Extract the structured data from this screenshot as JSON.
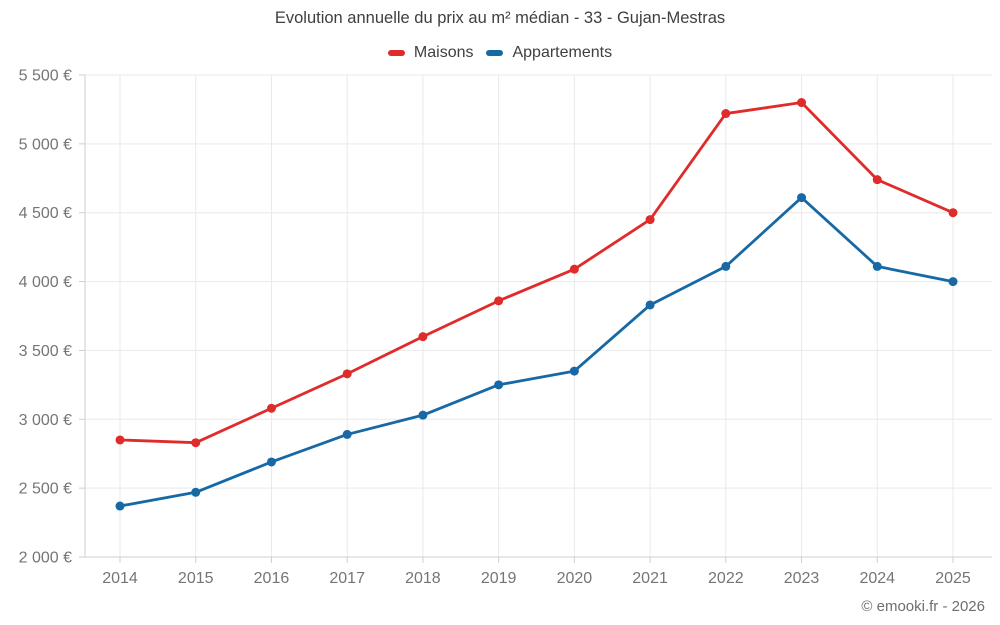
{
  "title": "Evolution annuelle du prix au m² médian - 33 - Gujan-Mestras",
  "copyright": "© emooki.fr - 2026",
  "legend": {
    "items": [
      {
        "label": "Maisons",
        "color": "#e02b2b"
      },
      {
        "label": "Appartements",
        "color": "#1769a6"
      }
    ]
  },
  "chart_data": {
    "type": "line",
    "title": "Evolution annuelle du prix au m² médian - 33 - Gujan-Mestras",
    "x": [
      2014,
      2015,
      2016,
      2017,
      2018,
      2019,
      2020,
      2021,
      2022,
      2023,
      2024,
      2025
    ],
    "series": [
      {
        "name": "Maisons",
        "color": "#e02b2b",
        "values": [
          2850,
          2830,
          3080,
          3330,
          3600,
          3860,
          4090,
          4450,
          5220,
          5300,
          4740,
          4500
        ]
      },
      {
        "name": "Appartements",
        "color": "#1769a6",
        "values": [
          2370,
          2470,
          2690,
          2890,
          3030,
          3250,
          3350,
          3830,
          4110,
          4610,
          4110,
          4000
        ]
      }
    ],
    "xlabel": "",
    "ylabel": "",
    "ylim": [
      2000,
      5500
    ],
    "ytick_step": 500,
    "y_unit": "€",
    "grid": true,
    "legend_position": "top",
    "marker": "circle"
  }
}
